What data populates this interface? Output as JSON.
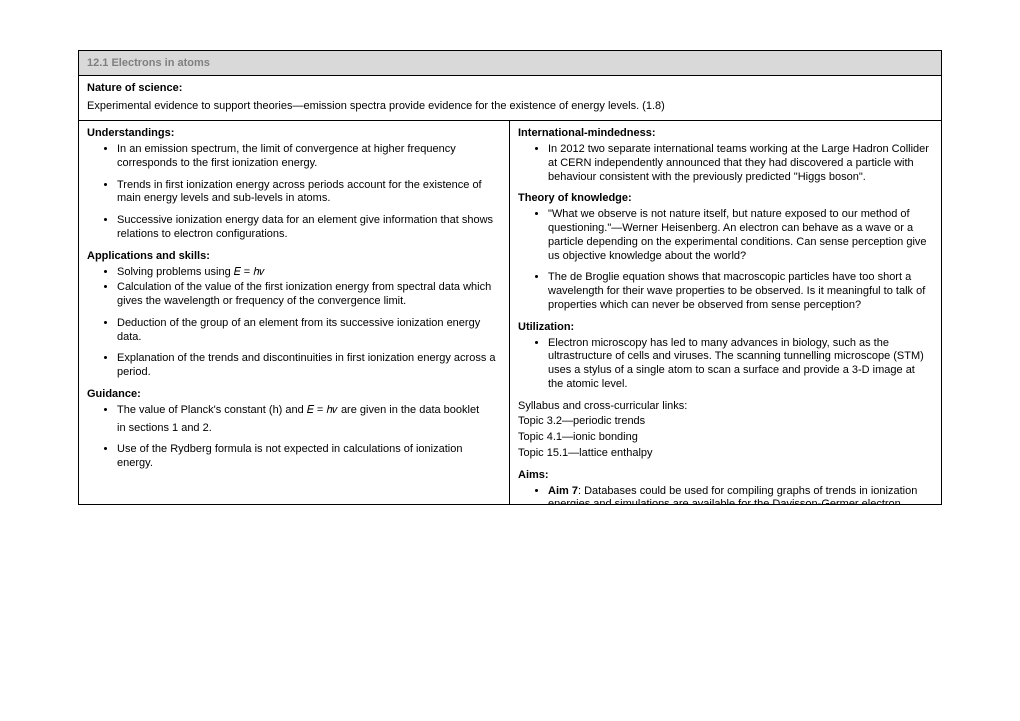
{
  "title": "12.1 Electrons in atoms",
  "nos": {
    "heading": "Nature of science:",
    "body": "Experimental evidence to support theories—emission spectra provide evidence for the existence of energy levels. (1.8)"
  },
  "left": {
    "understandings": {
      "heading": "Understandings:",
      "items": [
        "In an emission spectrum, the limit of convergence at higher frequency corresponds to the first ionization energy.",
        "Trends in first ionization energy across periods account for the existence of main energy levels and sub-levels in atoms.",
        "Successive ionization energy data for an element give information that shows relations to electron configurations."
      ]
    },
    "applications": {
      "heading": "Applications and skills:",
      "items": [
        "Solving problems using 𝐸 = ℎ𝜈",
        "Calculation of the value of the first ionization energy from spectral data which gives the wavelength or frequency of the convergence limit.",
        "Deduction of the group of an element from its successive ionization energy data.",
        "Explanation of the trends and discontinuities in first ionization energy across a period."
      ]
    },
    "guidance": {
      "heading": "Guidance:",
      "item1_line1": "The value of Planck's constant (h) and 𝐸 = ℎ𝜈 are given in the data booklet",
      "item1_line2": "in sections 1 and 2.",
      "item2": "Use of the Rydberg formula is not expected in calculations of ionization energy."
    }
  },
  "right": {
    "intl": {
      "heading": "International-mindedness:",
      "items": [
        "In 2012 two separate international teams working at the Large Hadron Collider at CERN independently announced that they had discovered a particle with behaviour consistent with the previously predicted \"Higgs boson\"."
      ]
    },
    "tok": {
      "heading": "Theory of knowledge:",
      "items": [
        "\"What we observe is not nature itself, but nature exposed to our method of questioning.\"—Werner Heisenberg. An electron can behave as a wave or a particle depending on the experimental conditions. Can sense perception give us objective knowledge about the world?",
        "The de Broglie equation shows that macroscopic particles have too short a wavelength for their wave properties to be observed. Is it meaningful to talk of properties which can never be observed from sense perception?"
      ]
    },
    "util": {
      "heading": "Utilization:",
      "items": [
        "Electron microscopy has led to many advances in biology, such as the ultrastructure of cells and viruses. The scanning tunnelling microscope (STM) uses a stylus of a single atom to scan a surface and provide a 3-D image at the atomic level."
      ],
      "links_heading": "Syllabus and cross-curricular links:",
      "links": [
        "Topic 3.2—periodic trends",
        "Topic 4.1—ionic bonding",
        "Topic 15.1—lattice enthalpy"
      ]
    },
    "aims": {
      "heading": "Aims:",
      "item_prefix": "Aim 7",
      "item_body": ": Databases could be used for compiling graphs of trends in ionization energies and simulations are available for the Davisson-Germer electron"
    }
  }
}
